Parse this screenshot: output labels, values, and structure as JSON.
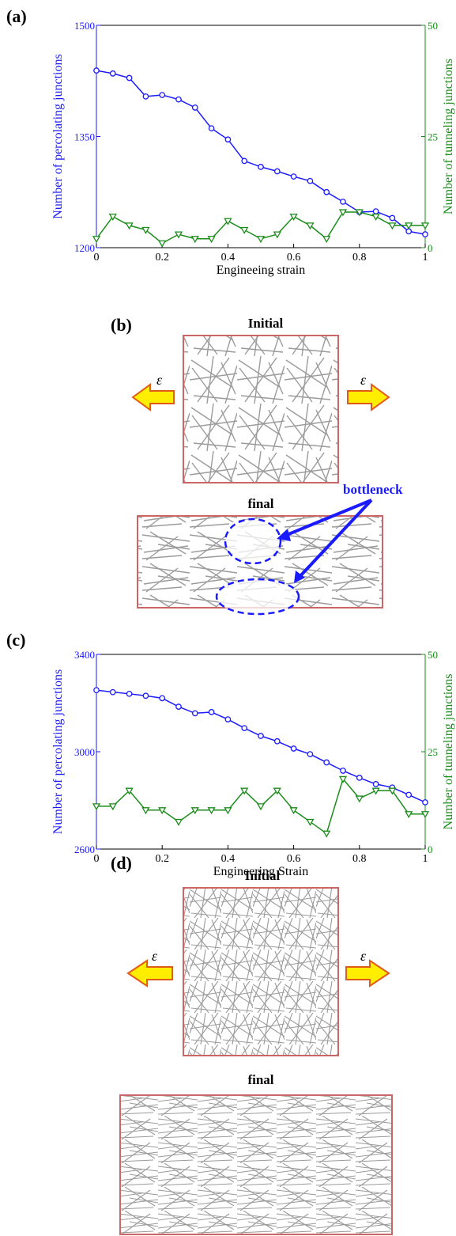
{
  "panels": {
    "a": {
      "label": "(a)"
    },
    "b": {
      "label": "(b)",
      "initial_title": "Initial",
      "final_title": "final",
      "annotation": "bottleneck",
      "strain_symbol": "ε"
    },
    "c": {
      "label": "(c)"
    },
    "d": {
      "label": "(d)",
      "initial_title": "Initial",
      "final_title": "final",
      "strain_symbol": "ε"
    }
  },
  "colors": {
    "series_left": "#1a1aff",
    "series_right": "#1a8c1a",
    "annotation": "#1a1aff",
    "arrow_fill": "#ffee00",
    "arrow_stroke": "#e05a1a",
    "box": "#cc6666"
  },
  "chart_data": [
    {
      "type": "line",
      "xlabel": "Engineeing strain",
      "ylabel": "Number of percolating junctions",
      "y2label": "Number of tunneling junctions",
      "xlim": [
        0,
        1
      ],
      "ylim": [
        1200,
        1500
      ],
      "y2lim": [
        0,
        50
      ],
      "xticks": [
        "0",
        "0.2",
        "0.4",
        "0.6",
        "0.8",
        "1"
      ],
      "yticks": [
        "1200",
        "1350",
        "1500"
      ],
      "y2ticks": [
        "0",
        "25",
        "50"
      ],
      "x": [
        0,
        0.05,
        0.1,
        0.15,
        0.2,
        0.25,
        0.3,
        0.35,
        0.4,
        0.45,
        0.5,
        0.55,
        0.6,
        0.65,
        0.7,
        0.75,
        0.8,
        0.85,
        0.9,
        0.95,
        1.0
      ],
      "series": [
        {
          "axis": "left",
          "marker": "circle",
          "values": [
            1439,
            1435,
            1429,
            1404,
            1406,
            1400,
            1389,
            1361,
            1346,
            1317,
            1309,
            1303,
            1296,
            1290,
            1275,
            1262,
            1248,
            1249,
            1240,
            1222,
            1218
          ]
        },
        {
          "axis": "right",
          "marker": "triangle-down",
          "values": [
            2,
            7,
            5,
            4,
            1,
            3,
            2,
            2,
            6,
            4,
            2,
            3,
            7,
            5,
            2,
            8,
            8,
            7,
            5,
            5,
            5
          ]
        }
      ]
    },
    {
      "type": "line",
      "xlabel": "Engineering Strain",
      "ylabel": "Number of percolating junctions",
      "y2label": "Number of tunneling junctions",
      "xlim": [
        0,
        1
      ],
      "ylim": [
        2600,
        3400
      ],
      "y2lim": [
        0,
        50
      ],
      "xticks": [
        "0",
        "0.2",
        "0.4",
        "0.6",
        "0.8",
        "1"
      ],
      "yticks": [
        "2600",
        "3000",
        "3400"
      ],
      "y2ticks": [
        "0",
        "25",
        "50"
      ],
      "x": [
        0,
        0.05,
        0.1,
        0.15,
        0.2,
        0.25,
        0.3,
        0.35,
        0.4,
        0.45,
        0.5,
        0.55,
        0.6,
        0.65,
        0.7,
        0.75,
        0.8,
        0.85,
        0.9,
        0.95,
        1.0
      ],
      "series": [
        {
          "axis": "left",
          "marker": "circle",
          "values": [
            3253,
            3245,
            3238,
            3230,
            3220,
            3185,
            3158,
            3163,
            3133,
            3097,
            3065,
            3043,
            3013,
            2990,
            2956,
            2922,
            2893,
            2867,
            2853,
            2823,
            2792
          ]
        },
        {
          "axis": "right",
          "marker": "triangle-down",
          "values": [
            11,
            11,
            15,
            10,
            10,
            7,
            10,
            10,
            10,
            15,
            11,
            15,
            10,
            7,
            4,
            18,
            13,
            15,
            15,
            9,
            9
          ]
        }
      ]
    }
  ]
}
